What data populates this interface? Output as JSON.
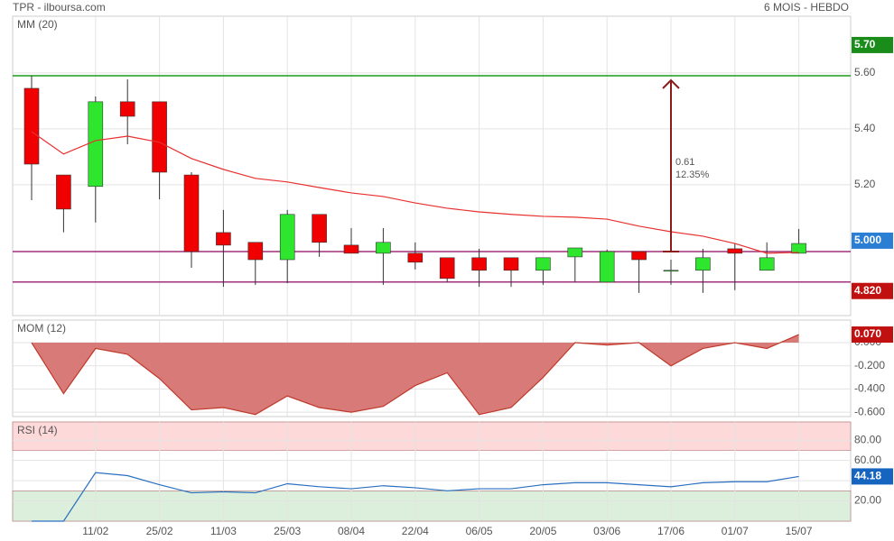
{
  "header": {
    "source": "TPR - ilboursa.com",
    "period": "6 MOIS - HEBDO"
  },
  "chart_data": [
    {
      "type": "candlestick",
      "categories": [
        null,
        null,
        "11/02",
        null,
        "25/02",
        null,
        "11/03",
        null,
        "25/03",
        null,
        "08/04",
        null,
        "22/04",
        null,
        "06/05",
        null,
        "20/05",
        null,
        "03/06",
        null,
        "17/06",
        null,
        "01/07",
        null,
        "15/07"
      ],
      "open": [
        5.545,
        5.235,
        5.194,
        5.497,
        5.497,
        5.235,
        5.029,
        4.994,
        4.932,
        5.094,
        4.984,
        4.955,
        4.955,
        4.939,
        4.939,
        4.939,
        4.894,
        4.942,
        4.852,
        4.961,
        4.894,
        4.894,
        4.971,
        4.894,
        4.955
      ],
      "high": [
        5.59,
        5.235,
        5.516,
        5.577,
        5.497,
        5.245,
        5.11,
        4.994,
        5.11,
        5.094,
        5.045,
        5.045,
        4.994,
        4.939,
        4.971,
        4.939,
        4.939,
        4.974,
        4.968,
        4.961,
        4.932,
        4.971,
        4.99,
        4.994,
        5.042
      ],
      "low": [
        5.145,
        5.03,
        5.065,
        5.345,
        5.148,
        4.903,
        4.835,
        4.842,
        4.848,
        4.942,
        4.955,
        4.842,
        4.897,
        4.852,
        4.835,
        4.835,
        4.842,
        4.852,
        4.852,
        4.813,
        4.842,
        4.813,
        4.823,
        4.894,
        4.955
      ],
      "close": [
        5.274,
        5.113,
        5.497,
        5.445,
        5.245,
        4.961,
        4.984,
        4.932,
        5.094,
        4.994,
        4.955,
        4.994,
        4.923,
        4.865,
        4.894,
        4.894,
        4.939,
        4.974,
        4.961,
        4.932,
        4.894,
        4.939,
        4.955,
        4.939,
        4.99
      ],
      "up_color": "#2ee62e",
      "down_color": "#f00000",
      "series": [
        {
          "name": "MM (20)",
          "color": "#e8302e",
          "values": [
            5.39,
            5.31,
            5.358,
            5.374,
            5.352,
            5.294,
            5.255,
            5.223,
            5.21,
            5.19,
            5.171,
            5.158,
            5.135,
            5.116,
            5.103,
            5.094,
            5.087,
            5.084,
            5.077,
            5.052,
            5.032,
            5.016,
            4.99,
            4.955,
            4.958
          ]
        }
      ],
      "ylim": [
        4.732,
        5.803
      ],
      "yticks": [
        {
          "value": 5.2,
          "label": "5.20"
        },
        {
          "value": 5.4,
          "label": "5.40"
        },
        {
          "value": 5.6,
          "label": "5.60"
        }
      ],
      "grid": true,
      "hlines": [
        {
          "value": 5.59,
          "color": "#1a9c1a"
        },
        {
          "value": 4.961,
          "color": "#a0307a"
        },
        {
          "value": 4.852,
          "color": "#a0307a"
        }
      ],
      "annotation": {
        "x": "17/06",
        "from": 4.961,
        "to": 5.574,
        "labels": [
          "0.61",
          "12.35%"
        ],
        "color": "#8b1a1a"
      },
      "price_tags": [
        {
          "value": 5.7,
          "label": "5.70",
          "color": "#1a8c1a"
        },
        {
          "value": 5.0,
          "label": "5.000",
          "color": "#2a7fd4"
        },
        {
          "value": 4.82,
          "label": "4.820",
          "color": "#c01010"
        }
      ]
    },
    {
      "type": "area",
      "series": [
        {
          "name": "MOM (12)",
          "color": "#c0392b",
          "fill": "#d87a78",
          "values": [
            0,
            -0.44,
            -0.05,
            -0.1,
            -0.31,
            -0.58,
            -0.56,
            -0.62,
            -0.46,
            -0.56,
            -0.6,
            -0.55,
            -0.37,
            -0.26,
            -0.62,
            -0.56,
            -0.3,
            0,
            -0.02,
            0,
            -0.2,
            -0.05,
            0,
            -0.05,
            0.07
          ]
        }
      ],
      "ylim": [
        -0.638,
        0.195
      ],
      "yticks": [
        {
          "value": 0,
          "label": "0.000"
        },
        {
          "value": -0.2,
          "label": "-0.200"
        },
        {
          "value": -0.4,
          "label": "-0.400"
        },
        {
          "value": -0.6,
          "label": "-0.600"
        }
      ],
      "grid": true,
      "price_tags": [
        {
          "value": 0.07,
          "label": "0.070",
          "color": "#c01010"
        }
      ]
    },
    {
      "type": "line",
      "series": [
        {
          "name": "RSI (14)",
          "color": "#2a6fc0",
          "values": [
            0,
            0,
            48,
            45,
            36,
            28,
            29,
            28,
            37,
            34,
            32,
            35,
            33,
            30,
            32,
            32,
            36,
            38,
            38,
            36,
            34,
            38,
            39,
            39,
            44.18
          ]
        }
      ],
      "ylim": [
        0,
        98
      ],
      "yticks": [
        {
          "value": 20,
          "label": "20.00"
        },
        {
          "value": 40,
          "label": "40.00"
        },
        {
          "value": 60,
          "label": "60.00"
        },
        {
          "value": 80,
          "label": "80.00"
        }
      ],
      "grid": true,
      "bands": [
        {
          "from": 70,
          "to": 98,
          "color": "#fdd9d9"
        },
        {
          "from": 0,
          "to": 30,
          "color": "#dcefdc"
        }
      ],
      "price_tags": [
        {
          "value": 44.18,
          "label": "44.18",
          "color": "#1565c0"
        }
      ]
    }
  ]
}
